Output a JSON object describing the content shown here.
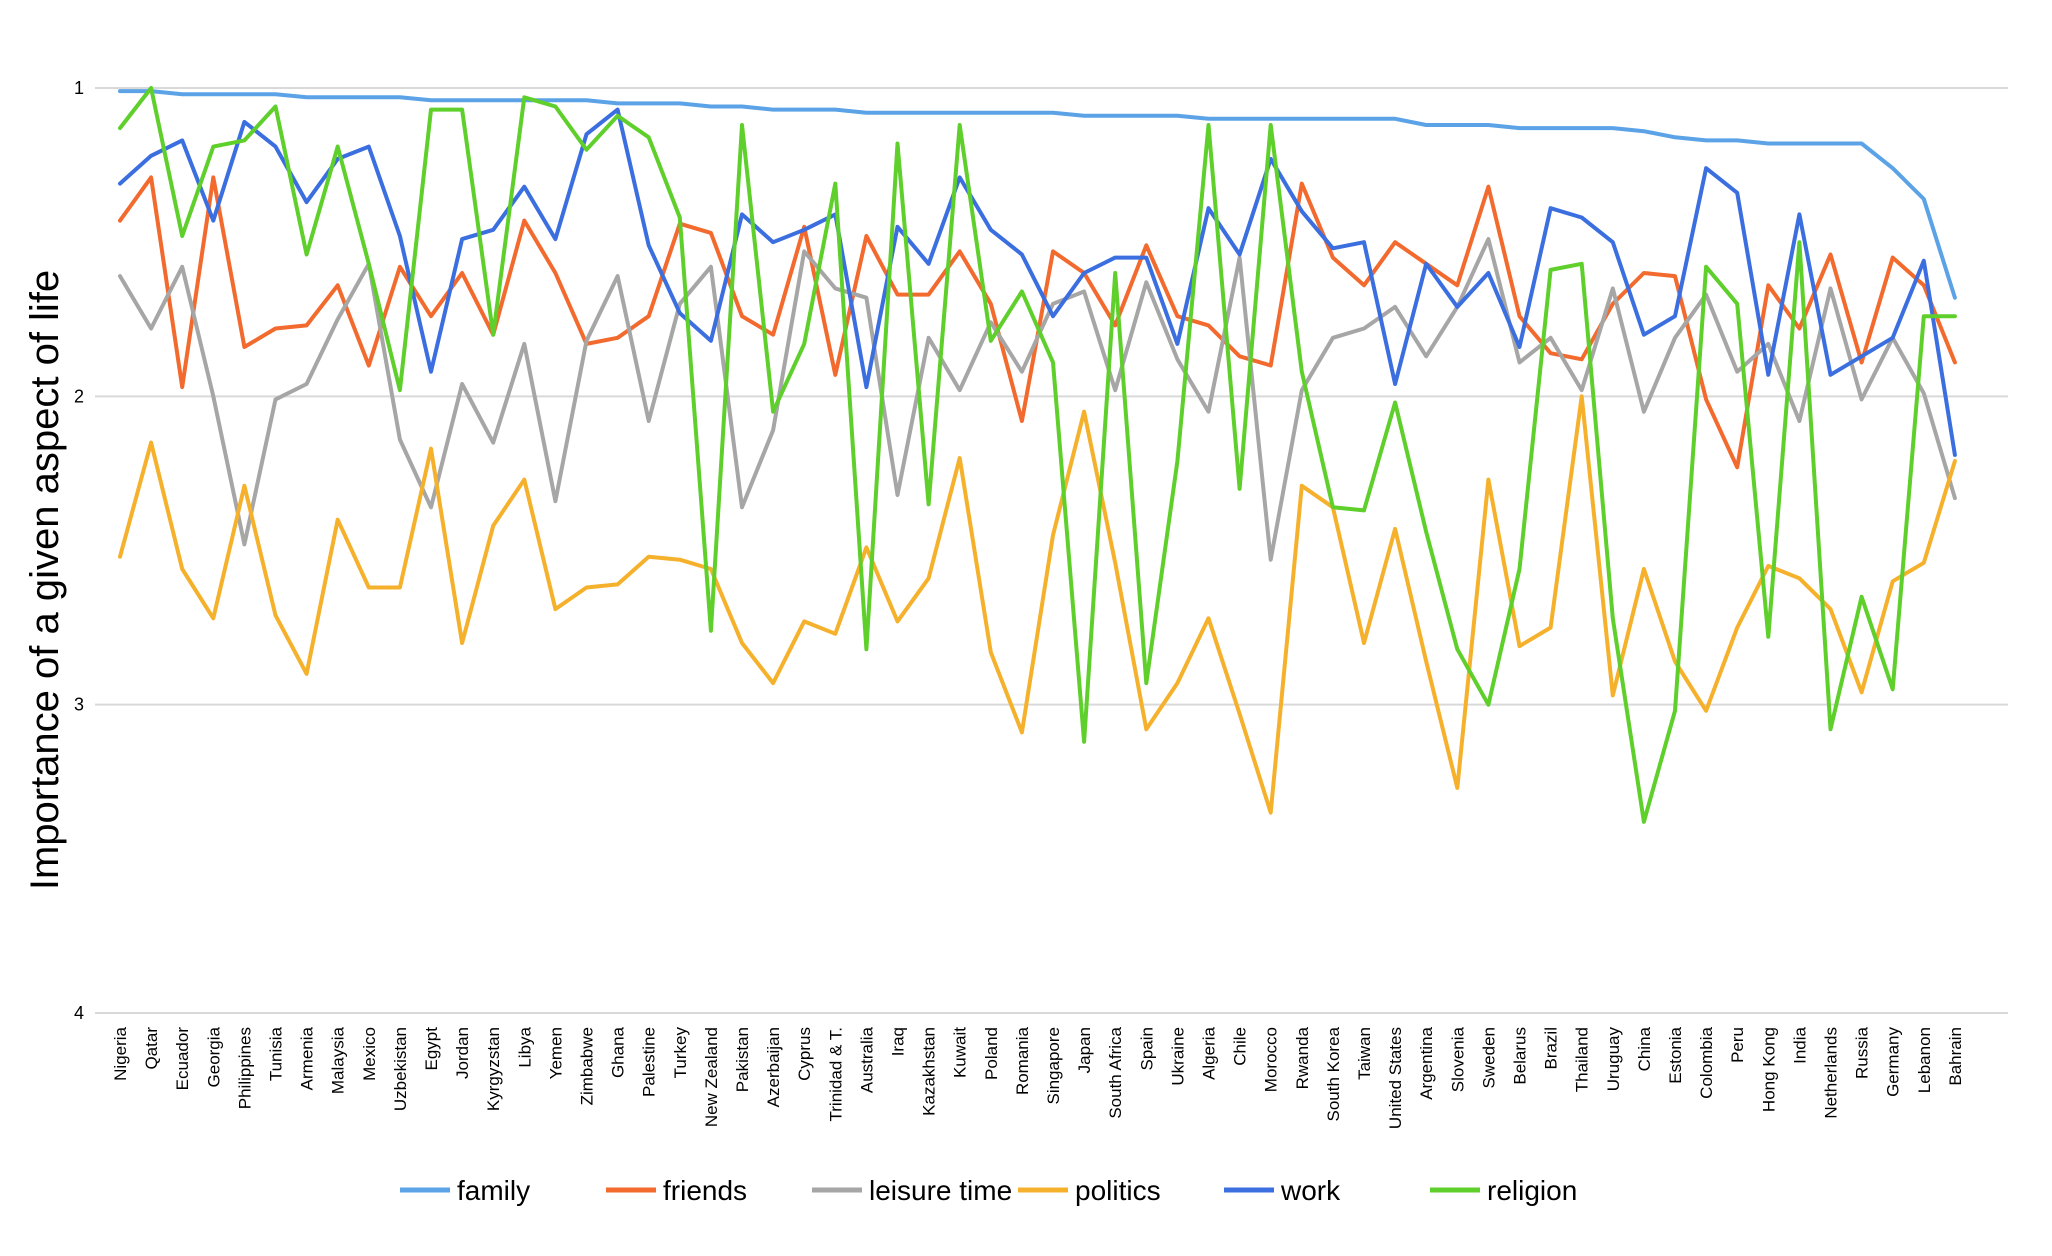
{
  "chart_data": {
    "type": "line",
    "title": "",
    "xlabel": "",
    "ylabel": "Importance of a given aspect of life",
    "ylim": [
      1,
      4
    ],
    "y_inverted": true,
    "yticks": [
      1,
      2,
      3,
      4
    ],
    "grid": "horizontal",
    "legend_position": "bottom",
    "categories": [
      "Nigeria",
      "Qatar",
      "Ecuador",
      "Georgia",
      "Philippines",
      "Tunisia",
      "Armenia",
      "Malaysia",
      "Mexico",
      "Uzbekistan",
      "Egypt",
      "Jordan",
      "Kyrgyzstan",
      "Libya",
      "Yemen",
      "Zimbabwe",
      "Ghana",
      "Palestine",
      "Turkey",
      "New Zealand",
      "Pakistan",
      "Azerbaijan",
      "Cyprus",
      "Trinidad & T.",
      "Australia",
      "Iraq",
      "Kazakhstan",
      "Kuwait",
      "Poland",
      "Romania",
      "Singapore",
      "Japan",
      "South Africa",
      "Spain",
      "Ukraine",
      "Algeria",
      "Chile",
      "Morocco",
      "Rwanda",
      "South Korea",
      "Taiwan",
      "United States",
      "Argentina",
      "Slovenia",
      "Sweden",
      "Belarus",
      "Brazil",
      "Thailand",
      "Uruguay",
      "China",
      "Estonia",
      "Colombia",
      "Peru",
      "Hong Kong",
      "India",
      "Netherlands",
      "Russia",
      "Germany",
      "Lebanon",
      "Bahrain"
    ],
    "series": [
      {
        "name": "family",
        "color": "#5ba3e6",
        "values": [
          1.01,
          1.01,
          1.02,
          1.02,
          1.02,
          1.02,
          1.03,
          1.03,
          1.03,
          1.03,
          1.04,
          1.04,
          1.04,
          1.04,
          1.04,
          1.04,
          1.05,
          1.05,
          1.05,
          1.06,
          1.06,
          1.07,
          1.07,
          1.07,
          1.08,
          1.08,
          1.08,
          1.08,
          1.08,
          1.08,
          1.08,
          1.09,
          1.09,
          1.09,
          1.09,
          1.1,
          1.1,
          1.1,
          1.1,
          1.1,
          1.1,
          1.1,
          1.12,
          1.12,
          1.12,
          1.13,
          1.13,
          1.13,
          1.13,
          1.14,
          1.16,
          1.17,
          1.17,
          1.18,
          1.18,
          1.18,
          1.18,
          1.26,
          1.36,
          1.68
        ]
      },
      {
        "name": "friends",
        "color": "#f26a2e",
        "values": [
          1.43,
          1.29,
          1.97,
          1.29,
          1.84,
          1.78,
          1.77,
          1.64,
          1.9,
          1.58,
          1.74,
          1.6,
          1.8,
          1.43,
          1.6,
          1.83,
          1.81,
          1.74,
          1.44,
          1.47,
          1.74,
          1.8,
          1.45,
          1.93,
          1.48,
          1.67,
          1.67,
          1.53,
          1.7,
          2.08,
          1.53,
          1.6,
          1.77,
          1.51,
          1.74,
          1.77,
          1.87,
          1.9,
          1.31,
          1.55,
          1.64,
          1.5,
          1.57,
          1.64,
          1.32,
          1.74,
          1.86,
          1.88,
          1.7,
          1.6,
          1.61,
          2.01,
          2.23,
          1.64,
          1.78,
          1.54,
          1.89,
          1.55,
          1.64,
          1.89
        ]
      },
      {
        "name": "leisure time",
        "color": "#a6a6a6",
        "values": [
          1.61,
          1.78,
          1.58,
          2.0,
          2.48,
          2.01,
          1.96,
          1.75,
          1.57,
          2.14,
          2.36,
          1.96,
          2.15,
          1.83,
          2.34,
          1.82,
          1.61,
          2.08,
          1.7,
          1.58,
          2.36,
          2.11,
          1.53,
          1.65,
          1.68,
          2.32,
          1.81,
          1.98,
          1.76,
          1.92,
          1.7,
          1.66,
          1.98,
          1.63,
          1.88,
          2.05,
          1.55,
          2.53,
          1.98,
          1.81,
          1.78,
          1.71,
          1.87,
          1.71,
          1.49,
          1.89,
          1.81,
          1.98,
          1.65,
          2.05,
          1.81,
          1.67,
          1.92,
          1.83,
          2.08,
          1.65,
          2.01,
          1.81,
          1.99,
          2.33
        ]
      },
      {
        "name": "politics",
        "color": "#f5b12c",
        "values": [
          2.52,
          2.15,
          2.56,
          2.72,
          2.29,
          2.71,
          2.9,
          2.4,
          2.62,
          2.62,
          2.17,
          2.8,
          2.42,
          2.27,
          2.69,
          2.62,
          2.61,
          2.52,
          2.53,
          2.56,
          2.8,
          2.93,
          2.73,
          2.77,
          2.49,
          2.73,
          2.59,
          2.2,
          2.83,
          3.09,
          2.45,
          2.05,
          2.54,
          3.08,
          2.93,
          2.72,
          3.03,
          3.35,
          2.29,
          2.36,
          2.8,
          2.43,
          2.86,
          3.27,
          2.27,
          2.81,
          2.75,
          2.0,
          2.97,
          2.56,
          2.86,
          3.02,
          2.75,
          2.55,
          2.59,
          2.69,
          2.96,
          2.6,
          2.54,
          2.21
        ]
      },
      {
        "name": "work",
        "color": "#3b6fe0",
        "values": [
          1.31,
          1.22,
          1.17,
          1.43,
          1.11,
          1.19,
          1.37,
          1.23,
          1.19,
          1.48,
          1.92,
          1.49,
          1.46,
          1.32,
          1.49,
          1.15,
          1.07,
          1.51,
          1.73,
          1.82,
          1.41,
          1.5,
          1.46,
          1.41,
          1.97,
          1.45,
          1.57,
          1.29,
          1.46,
          1.54,
          1.74,
          1.6,
          1.55,
          1.55,
          1.83,
          1.39,
          1.54,
          1.23,
          1.4,
          1.52,
          1.5,
          1.96,
          1.57,
          1.71,
          1.6,
          1.84,
          1.39,
          1.42,
          1.5,
          1.8,
          1.74,
          1.26,
          1.34,
          1.93,
          1.41,
          1.93,
          1.87,
          1.81,
          1.56,
          2.19
        ]
      },
      {
        "name": "religion",
        "color": "#5ecf2b",
        "values": [
          1.13,
          1.0,
          1.48,
          1.19,
          1.17,
          1.06,
          1.54,
          1.19,
          1.57,
          1.98,
          1.07,
          1.07,
          1.8,
          1.03,
          1.06,
          1.2,
          1.09,
          1.16,
          1.42,
          2.76,
          1.12,
          2.05,
          1.83,
          1.31,
          2.82,
          1.18,
          2.35,
          1.12,
          1.82,
          1.66,
          1.89,
          3.12,
          1.6,
          2.93,
          2.21,
          1.12,
          2.3,
          1.12,
          1.92,
          2.36,
          2.37,
          2.02,
          2.44,
          2.82,
          3.0,
          2.56,
          1.59,
          1.57,
          2.72,
          3.38,
          3.02,
          1.58,
          1.7,
          2.78,
          1.5,
          3.08,
          2.65,
          2.95,
          1.74,
          1.74
        ]
      }
    ]
  }
}
